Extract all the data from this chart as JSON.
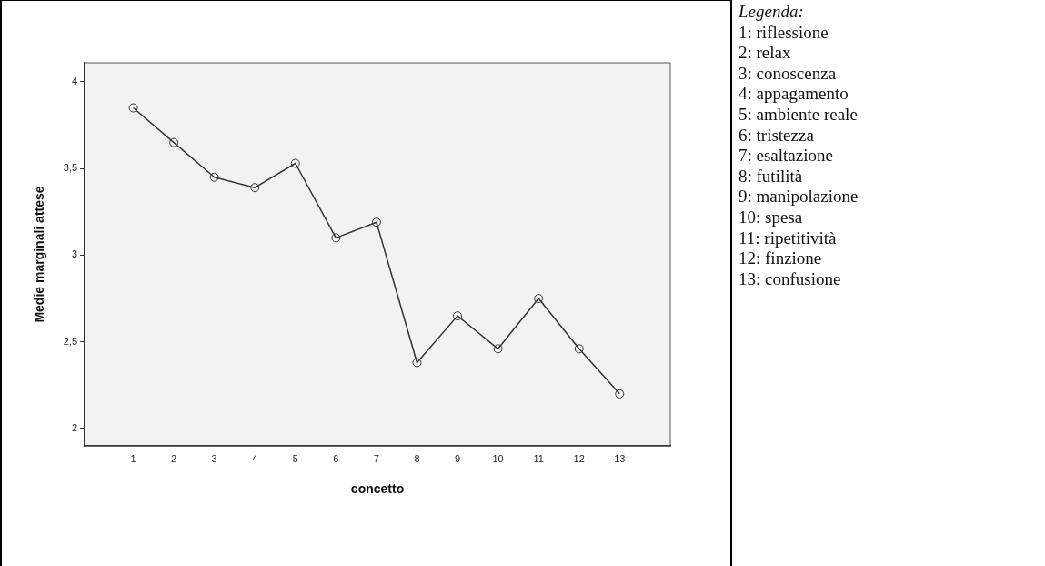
{
  "chart_data": {
    "type": "line",
    "xlabel": "concetto",
    "ylabel": "Medie marginali attese",
    "x": [
      1,
      2,
      3,
      4,
      5,
      6,
      7,
      8,
      9,
      10,
      11,
      12,
      13
    ],
    "series": [
      {
        "color": "#333333",
        "values": [
          3.85,
          3.65,
          3.45,
          3.39,
          3.53,
          3.1,
          3.19,
          2.38,
          2.65,
          2.46,
          2.75,
          2.46,
          2.2
        ]
      }
    ],
    "xlim": [
      -0.2,
      14.25
    ],
    "xticks": [
      1,
      2,
      3,
      4,
      5,
      6,
      7,
      8,
      9,
      10,
      11,
      12,
      13
    ],
    "ylim": [
      1.9,
      4.11
    ],
    "yticks": [
      2,
      {
        "value": 2.5,
        "label": "2,5"
      },
      3,
      {
        "value": 3.5,
        "label": "3,5"
      },
      4
    ],
    "grid": false,
    "legend": false,
    "marker": "circle",
    "line_style": "solid",
    "annotations": [
      "Legenda:",
      "1: riflessione",
      "2: relax",
      "3: conoscenza",
      "4: appagamento",
      "5: ambiente reale",
      "6: tristezza",
      "7: esaltazione",
      "8: futilità",
      "9: manipolazione",
      "10: spesa",
      "11: ripetitività",
      "12: finzione",
      "13: confusione"
    ]
  }
}
